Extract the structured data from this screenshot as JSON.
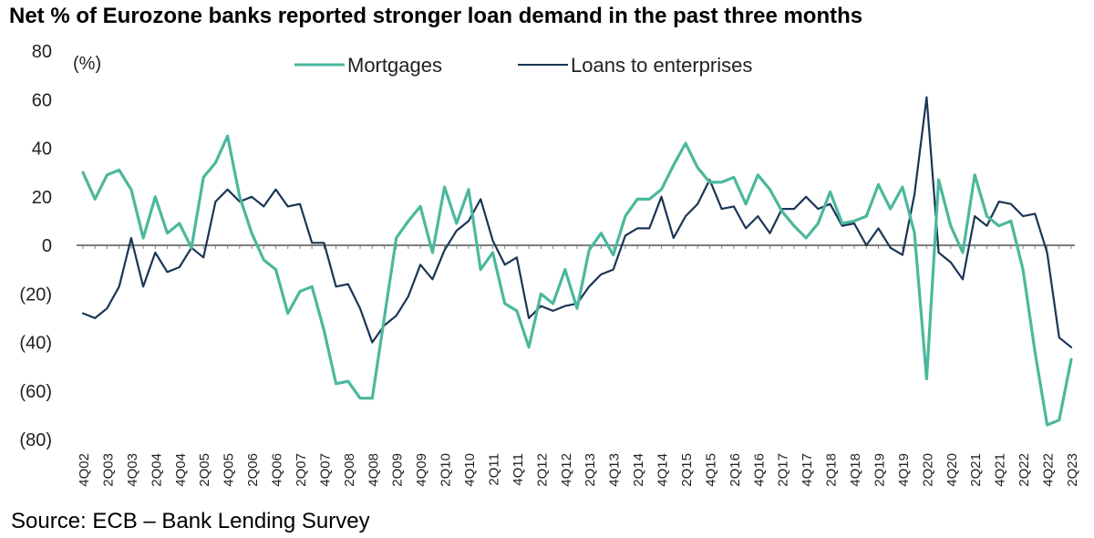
{
  "title": "Net % of Eurozone banks reported stronger loan demand in the past three months",
  "source": "Source: ECB – Bank Lending Survey",
  "colors": {
    "mortgages": "#4bb89c",
    "enterprises": "#1a3556",
    "zero_line": "#7f7f7f"
  },
  "chart_data": {
    "type": "line",
    "unit_label": "(%)",
    "ylim": [
      -80,
      80
    ],
    "y_ticks": [
      80,
      60,
      40,
      20,
      0,
      -20,
      -40,
      -60,
      -80
    ],
    "y_tick_labels": [
      "80",
      "60",
      "40",
      "20",
      "0",
      "(20)",
      "(40)",
      "(60)",
      "(80)"
    ],
    "grid": false,
    "legend_position": "top-center",
    "x": [
      "4Q02",
      "1Q03",
      "2Q03",
      "3Q03",
      "4Q03",
      "1Q04",
      "2Q04",
      "3Q04",
      "4Q04",
      "1Q05",
      "2Q05",
      "3Q05",
      "4Q05",
      "1Q06",
      "2Q06",
      "3Q06",
      "4Q06",
      "1Q07",
      "2Q07",
      "3Q07",
      "4Q07",
      "1Q08",
      "2Q08",
      "3Q08",
      "4Q08",
      "1Q09",
      "2Q09",
      "3Q09",
      "4Q09",
      "1Q10",
      "2Q10",
      "3Q10",
      "4Q10",
      "1Q11",
      "2Q11",
      "3Q11",
      "4Q11",
      "1Q12",
      "2Q12",
      "3Q12",
      "4Q12",
      "1Q13",
      "2Q13",
      "3Q13",
      "4Q13",
      "1Q14",
      "2Q14",
      "3Q14",
      "4Q14",
      "1Q15",
      "2Q15",
      "3Q15",
      "4Q15",
      "1Q16",
      "2Q16",
      "3Q16",
      "4Q16",
      "1Q17",
      "2Q17",
      "3Q17",
      "4Q17",
      "1Q18",
      "2Q18",
      "3Q18",
      "4Q18",
      "1Q19",
      "2Q19",
      "3Q19",
      "4Q19",
      "1Q20",
      "2Q20",
      "3Q20",
      "4Q20",
      "1Q21",
      "2Q21",
      "3Q21",
      "4Q21",
      "1Q22",
      "2Q22",
      "3Q22",
      "4Q22",
      "1Q23",
      "2Q23"
    ],
    "x_tick_labels": [
      "4Q02",
      "2Q03",
      "4Q03",
      "2Q04",
      "4Q04",
      "2Q05",
      "4Q05",
      "2Q06",
      "4Q06",
      "2Q07",
      "4Q07",
      "2Q08",
      "4Q08",
      "2Q09",
      "4Q09",
      "2Q10",
      "4Q10",
      "2Q11",
      "4Q11",
      "2Q12",
      "4Q12",
      "2Q13",
      "4Q13",
      "2Q14",
      "4Q14",
      "2Q15",
      "4Q15",
      "2Q16",
      "4Q16",
      "2Q17",
      "4Q17",
      "2Q18",
      "4Q18",
      "2Q19",
      "4Q19",
      "2Q20",
      "4Q20",
      "2Q21",
      "4Q21",
      "2Q22",
      "4Q22",
      "2Q23"
    ],
    "series": [
      {
        "name": "Mortgages",
        "values": [
          30,
          19,
          29,
          31,
          23,
          3,
          20,
          5,
          9,
          -1,
          28,
          34,
          45,
          20,
          5,
          -6,
          -10,
          -28,
          -19,
          -17,
          -35,
          -57,
          -56,
          -63,
          -63,
          -30,
          3,
          10,
          16,
          -3,
          24,
          9,
          23,
          -10,
          -3,
          -24,
          -27,
          -42,
          -20,
          -24,
          -10,
          -26,
          -2,
          5,
          -4,
          12,
          19,
          19,
          23,
          33,
          42,
          32,
          26,
          26,
          28,
          17,
          29,
          23,
          14,
          8,
          3,
          9,
          22,
          9,
          10,
          12,
          25,
          15,
          24,
          5,
          -55,
          27,
          8,
          -3,
          29,
          12,
          8,
          10,
          -10,
          -44,
          -74,
          -72,
          -47
        ]
      },
      {
        "name": "Loans to enterprises",
        "values": [
          -28,
          -30,
          -26,
          -17,
          3,
          -17,
          -3,
          -11,
          -9,
          -1,
          -5,
          18,
          23,
          18,
          20,
          16,
          23,
          16,
          17,
          1,
          1,
          -17,
          -16,
          -26,
          -40,
          -33,
          -29,
          -21,
          -8,
          -14,
          -2,
          6,
          10,
          19,
          2,
          -8,
          -5,
          -30,
          -25,
          -27,
          -25,
          -24,
          -17,
          -12,
          -10,
          4,
          7,
          7,
          20,
          3,
          12,
          17,
          27,
          15,
          16,
          7,
          12,
          5,
          15,
          15,
          20,
          15,
          17,
          8,
          9,
          0,
          7,
          -1,
          -4,
          21,
          61,
          -3,
          -7,
          -14,
          12,
          8,
          18,
          17,
          12,
          13,
          -3,
          -38,
          -42
        ]
      }
    ]
  }
}
